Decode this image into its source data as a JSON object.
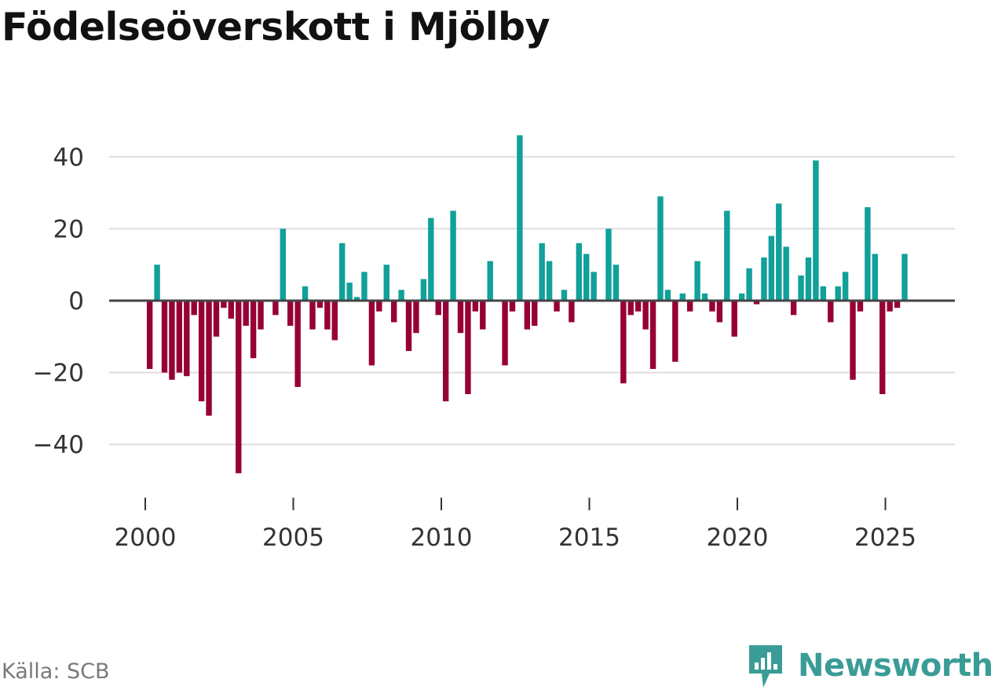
{
  "chart_data": {
    "type": "bar",
    "title": "Födelseöverskott i Mjölby",
    "xlabel": "",
    "ylabel": "",
    "ylim": [
      -52,
      50
    ],
    "xlim": [
      1999.2,
      2027.35
    ],
    "yticks": [
      40,
      20,
      0,
      -20,
      -40
    ],
    "ytick_labels": [
      "40",
      "20",
      "0",
      "−20",
      "−40"
    ],
    "xticks": [
      2000,
      2005,
      2010,
      2015,
      2020,
      2025
    ],
    "xtick_labels": [
      "2000",
      "2005",
      "2010",
      "2015",
      "2020",
      "2025"
    ],
    "grid": true,
    "positive_color": "#11a09a",
    "negative_color": "#960036",
    "x_start": 2000,
    "x_step": 0.25,
    "values": [
      -19,
      10,
      -20,
      -22,
      -20,
      -21,
      -4,
      -28,
      -32,
      -10,
      -2,
      -5,
      -48,
      -7,
      -16,
      -8,
      0,
      -4,
      20,
      -7,
      -24,
      4,
      -8,
      -2,
      -8,
      -11,
      16,
      5,
      1,
      8,
      -18,
      -3,
      10,
      -6,
      3,
      -14,
      -9,
      6,
      23,
      -4,
      -28,
      25,
      -9,
      -26,
      -3,
      -8,
      11,
      0,
      -18,
      -3,
      46,
      -8,
      -7,
      16,
      11,
      -3,
      3,
      -6,
      16,
      13,
      8,
      0,
      20,
      10,
      -23,
      -4,
      -3,
      -8,
      -19,
      29,
      3,
      -17,
      2,
      -3,
      11,
      2,
      -3,
      -6,
      25,
      -10,
      2,
      9,
      -1,
      12,
      18,
      27,
      15,
      -4,
      7,
      12,
      39,
      4,
      -6,
      4,
      8,
      -22,
      -3,
      26,
      13,
      -26,
      -3,
      -2,
      13
    ]
  },
  "title": "Födelseöverskott i Mjölby",
  "source": "Källa: SCB",
  "brand": "Newsworthy"
}
